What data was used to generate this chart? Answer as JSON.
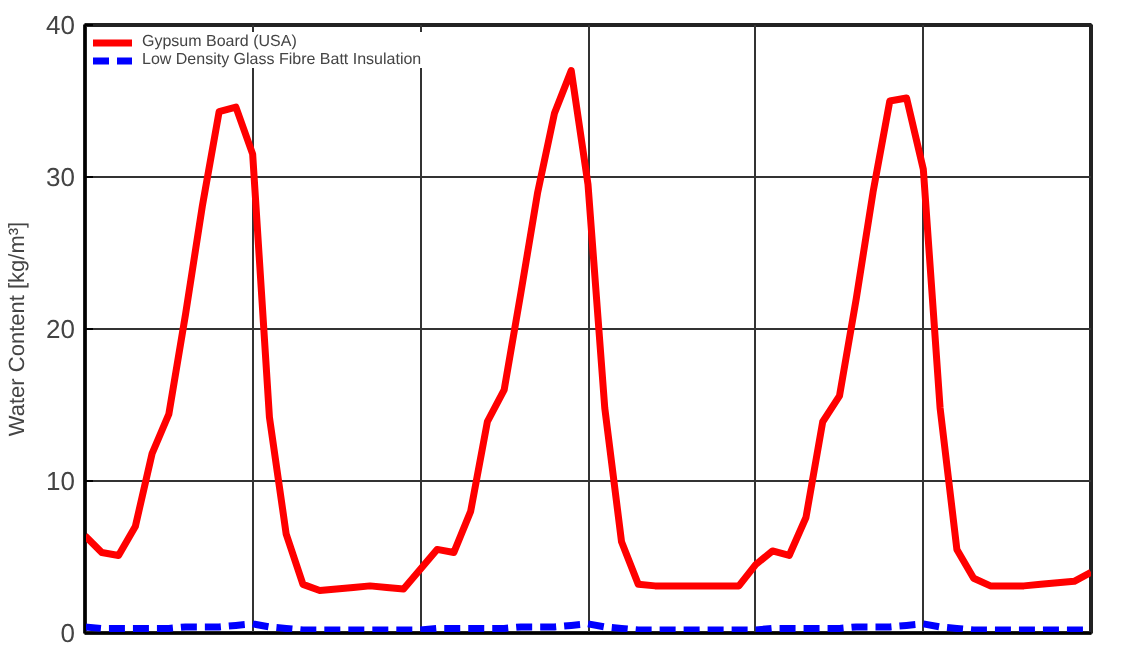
{
  "chart_data": {
    "type": "line",
    "ylabel": "Water Content [kg/m³]",
    "ylim": [
      0,
      40
    ],
    "categories": [
      null,
      null,
      null,
      null,
      null,
      null,
      null,
      null,
      null,
      null,
      null,
      null,
      null,
      null,
      null,
      null,
      null,
      null,
      null,
      null,
      null,
      null,
      null,
      null,
      null,
      null,
      null,
      null,
      null,
      null,
      null,
      null,
      null,
      null,
      null,
      null,
      null,
      null,
      null,
      null,
      null,
      null,
      null,
      null,
      null,
      null,
      null,
      null,
      null,
      null,
      null,
      null,
      null,
      null,
      null,
      null,
      null,
      null,
      null,
      null,
      null
    ],
    "yticks": [
      0,
      10,
      20,
      30,
      40
    ],
    "tick_labels": "y",
    "grid": true,
    "legend": "top left",
    "series": [
      {
        "name": "Gypsum Board (USA)",
        "color": "#ff0000",
        "line_style": "solid",
        "values": [
          6.4,
          5.3,
          5.1,
          7.0,
          11.8,
          14.4,
          21.0,
          28.1,
          34.3,
          34.6,
          31.5,
          14.2,
          6.5,
          3.2,
          2.8,
          2.9,
          3.0,
          3.1,
          3.0,
          2.9,
          4.2,
          5.5,
          5.3,
          8.0,
          13.9,
          16.0,
          22.4,
          29.0,
          34.2,
          37.0,
          29.5,
          14.8,
          6.0,
          3.2,
          3.1,
          3.1,
          3.1,
          3.1,
          3.1,
          3.1,
          4.5,
          5.4,
          5.1,
          7.6,
          13.9,
          15.6,
          22.0,
          29.0,
          35.0,
          35.2,
          30.5,
          14.8,
          5.5,
          3.6,
          3.1,
          3.1,
          3.1,
          3.2,
          3.3,
          3.4,
          4.0
        ]
      },
      {
        "name": "Low Density Glass Fibre Batt Insulation",
        "color": "#0000ff",
        "line_style": "dashed",
        "values": [
          0.4,
          0.3,
          0.3,
          0.3,
          0.3,
          0.3,
          0.4,
          0.4,
          0.4,
          0.5,
          0.6,
          0.4,
          0.3,
          0.2,
          0.2,
          0.2,
          0.2,
          0.2,
          0.2,
          0.2,
          0.2,
          0.3,
          0.3,
          0.3,
          0.3,
          0.3,
          0.4,
          0.4,
          0.4,
          0.5,
          0.6,
          0.4,
          0.3,
          0.2,
          0.2,
          0.2,
          0.2,
          0.2,
          0.2,
          0.2,
          0.2,
          0.3,
          0.3,
          0.3,
          0.3,
          0.3,
          0.4,
          0.4,
          0.4,
          0.5,
          0.6,
          0.4,
          0.3,
          0.2,
          0.2,
          0.2,
          0.2,
          0.2,
          0.2,
          0.2,
          0.2
        ]
      }
    ]
  }
}
